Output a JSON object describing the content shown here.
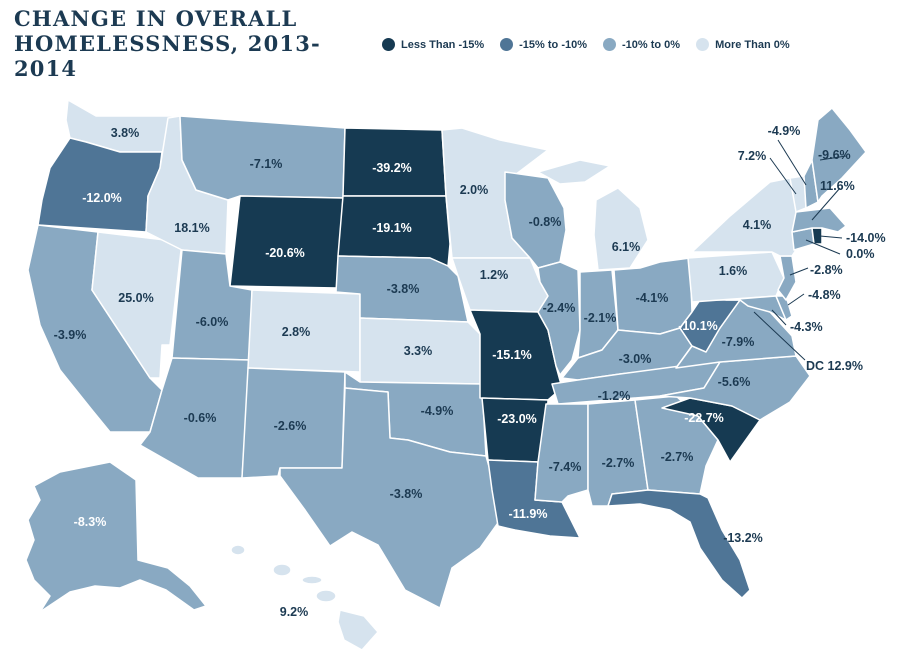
{
  "title": {
    "line1": "CHANGE IN OVERALL",
    "line2": "HOMELESSNESS, 2013-2014"
  },
  "colors": {
    "less_than_neg15": "#163a52",
    "neg15_to_neg10": "#4f7596",
    "neg10_to_0": "#89a9c2",
    "more_than_0": "#d6e3ee",
    "label_dark": "#1c3a52",
    "label_light": "#ffffff"
  },
  "legend": [
    {
      "label": "Less Than -15%",
      "color": "#163a52"
    },
    {
      "label": "-15% to -10%",
      "color": "#4f7596"
    },
    {
      "label": "-10% to 0%",
      "color": "#89a9c2"
    },
    {
      "label": "More Than 0%",
      "color": "#d6e3ee"
    }
  ],
  "states": {
    "WA": "3.8%",
    "OR": "-12.0%",
    "CA": "-3.9%",
    "NV": "25.0%",
    "ID": "18.1%",
    "MT": "-7.1%",
    "WY": "-20.6%",
    "UT": "-6.0%",
    "AZ": "-0.6%",
    "CO": "2.8%",
    "NM": "-2.6%",
    "ND": "-39.2%",
    "SD": "-19.1%",
    "NE": "-3.8%",
    "KS": "3.3%",
    "OK": "-4.9%",
    "TX": "-3.8%",
    "MN": "2.0%",
    "IA": "1.2%",
    "MO": "-15.1%",
    "AR": "-23.0%",
    "LA": "-11.9%",
    "WI": "-0.8%",
    "IL": "-2.4%",
    "MI": "6.1%",
    "IN": "-2.1%",
    "OH": "-4.1%",
    "KY": "-3.0%",
    "TN": "-1.2%",
    "MS": "-7.4%",
    "AL": "-2.7%",
    "GA": "-2.7%",
    "FL": "-13.2%",
    "SC": "-22.7%",
    "NC": "-5.6%",
    "VA": "-7.9%",
    "WV": "-10.1%",
    "PA": "1.6%",
    "NY": "4.1%",
    "VT": "7.2%",
    "NH": "-4.9%",
    "ME": "-9.6%",
    "MA": "11.6%",
    "RI": "-14.0%",
    "CT": "0.0%",
    "NJ": "-2.8%",
    "DE": "-4.8%",
    "MD": "-4.3%",
    "DC": "DC 12.9%",
    "AK": "-8.3%",
    "HI": "9.2%"
  }
}
